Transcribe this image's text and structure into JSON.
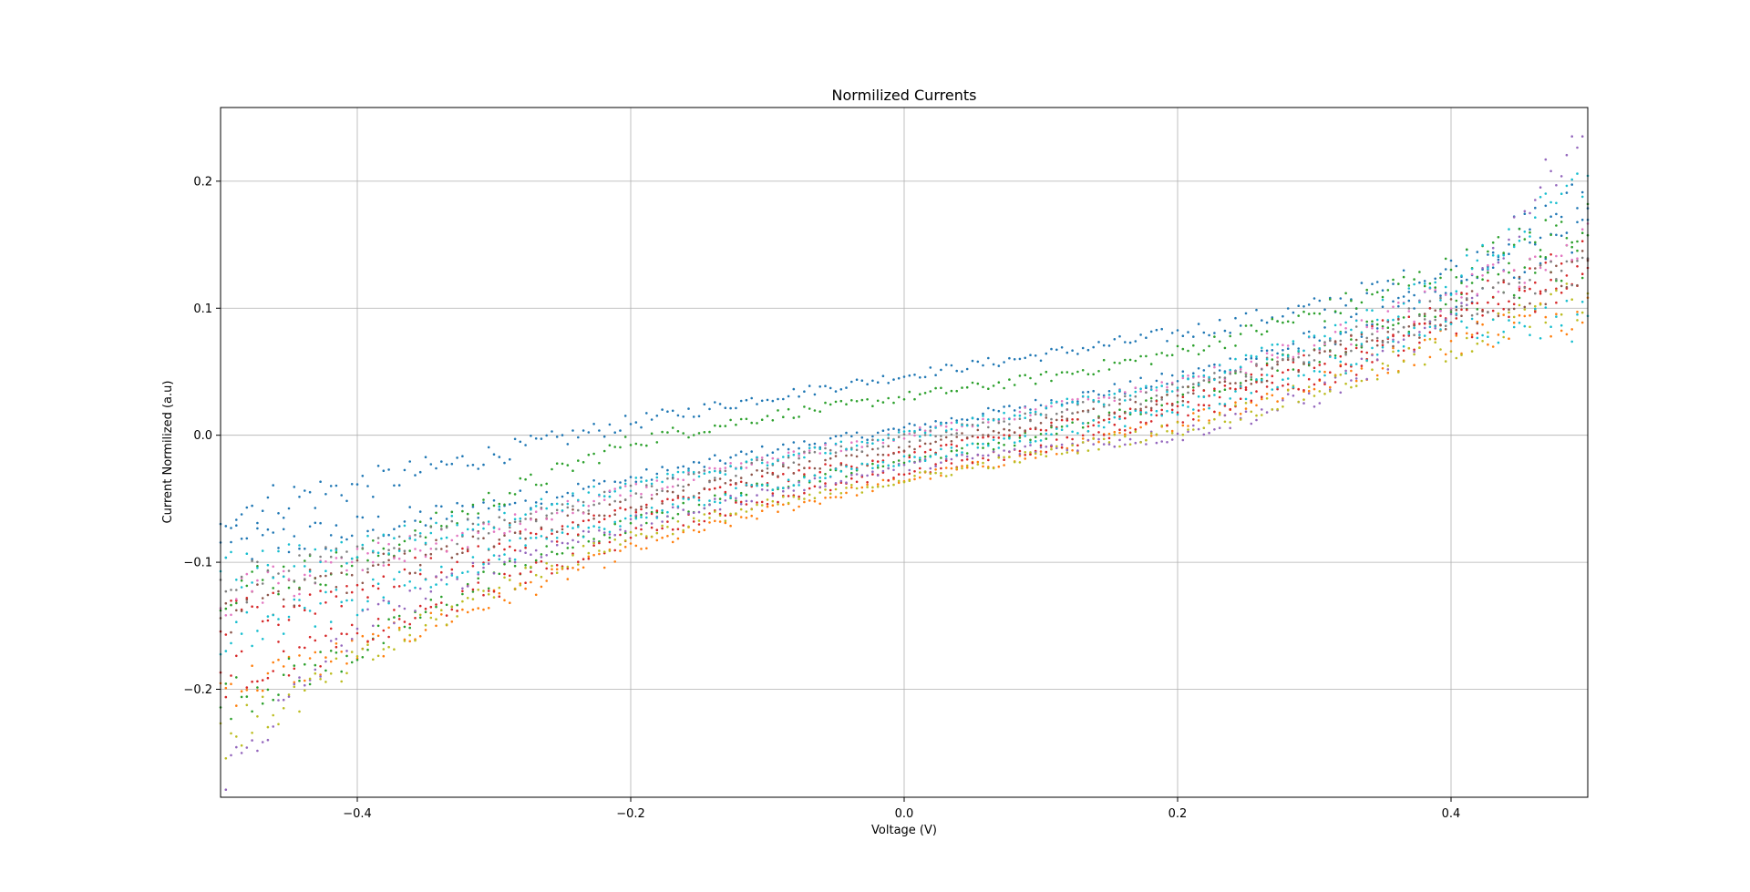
{
  "figure": {
    "background": "#ffffff"
  },
  "chart_data": {
    "type": "scatter",
    "title": "Normilized Currents",
    "xlabel": "Voltage (V)",
    "ylabel": "Current Normilized (a.u)",
    "xlim": [
      -0.5,
      0.5
    ],
    "ylim": [
      -0.285,
      0.258
    ],
    "xticks": [
      -0.4,
      -0.2,
      0.0,
      0.2,
      0.4
    ],
    "xtick_labels": [
      "−0.4",
      "−0.2",
      "0.0",
      "0.2",
      "0.4"
    ],
    "yticks": [
      -0.2,
      -0.1,
      0.0,
      0.1,
      0.2
    ],
    "ytick_labels": [
      "−0.2",
      "−0.1",
      "0.0",
      "0.1",
      "0.2"
    ],
    "grid": true,
    "legend": "none",
    "marker_size_hint": "small dots",
    "palette": [
      "#1f77b4",
      "#ff7f0e",
      "#2ca02c",
      "#d62728",
      "#9467bd",
      "#8c564b",
      "#e377c2",
      "#7f7f7f",
      "#bcbd22",
      "#17becf"
    ],
    "x": [
      -0.5,
      -0.4,
      -0.3,
      -0.2,
      -0.1,
      0.0,
      0.1,
      0.2,
      0.3,
      0.4,
      0.5
    ],
    "series": [
      {
        "color": "#1f77b4",
        "values": [
          -0.09,
          -0.075,
          -0.055,
          -0.035,
          -0.012,
          0.005,
          0.025,
          0.045,
          0.075,
          0.11,
          0.16
        ]
      },
      {
        "color": "#1f77b4",
        "values": [
          -0.06,
          -0.04,
          -0.015,
          0.01,
          0.03,
          0.047,
          0.063,
          0.08,
          0.1,
          0.13,
          0.19
        ]
      },
      {
        "color": "#ff7f0e",
        "values": [
          -0.2,
          -0.17,
          -0.13,
          -0.09,
          -0.06,
          -0.035,
          -0.015,
          0.01,
          0.04,
          0.075,
          0.1
        ]
      },
      {
        "color": "#2ca02c",
        "values": [
          -0.12,
          -0.1,
          -0.05,
          -0.005,
          0.015,
          0.03,
          0.045,
          0.065,
          0.095,
          0.13,
          0.17
        ]
      },
      {
        "color": "#2ca02c",
        "values": [
          -0.21,
          -0.17,
          -0.11,
          -0.07,
          -0.04,
          -0.02,
          0.0,
          0.03,
          0.065,
          0.105,
          0.14
        ]
      },
      {
        "color": "#d62728",
        "values": [
          -0.15,
          -0.12,
          -0.09,
          -0.06,
          -0.035,
          -0.015,
          0.005,
          0.025,
          0.06,
          0.1,
          0.14
        ]
      },
      {
        "color": "#d62728",
        "values": [
          -0.19,
          -0.16,
          -0.12,
          -0.08,
          -0.05,
          -0.03,
          -0.01,
          0.015,
          0.045,
          0.085,
          0.12
        ]
      },
      {
        "color": "#9467bd",
        "values": [
          -0.27,
          -0.15,
          -0.1,
          -0.07,
          -0.045,
          -0.025,
          -0.01,
          0.0,
          0.03,
          0.09,
          0.25
        ]
      },
      {
        "color": "#8c564b",
        "values": [
          -0.14,
          -0.11,
          -0.08,
          -0.055,
          -0.03,
          -0.01,
          0.01,
          0.03,
          0.06,
          0.095,
          0.13
        ]
      },
      {
        "color": "#e377c2",
        "values": [
          -0.13,
          -0.1,
          -0.075,
          -0.045,
          -0.02,
          0.0,
          0.02,
          0.04,
          0.07,
          0.11,
          0.15
        ]
      },
      {
        "color": "#7f7f7f",
        "values": [
          -0.12,
          -0.095,
          -0.07,
          -0.045,
          -0.022,
          -0.003,
          0.015,
          0.035,
          0.065,
          0.1,
          0.14
        ]
      },
      {
        "color": "#bcbd22",
        "values": [
          -0.24,
          -0.18,
          -0.12,
          -0.08,
          -0.055,
          -0.035,
          -0.015,
          0.005,
          0.035,
          0.07,
          0.11
        ]
      },
      {
        "color": "#17becf",
        "values": [
          -0.11,
          -0.09,
          -0.065,
          -0.04,
          -0.02,
          0.0,
          0.02,
          0.04,
          0.075,
          0.12,
          0.2
        ]
      },
      {
        "color": "#17becf",
        "values": [
          -0.16,
          -0.13,
          -0.095,
          -0.065,
          -0.04,
          -0.02,
          0.0,
          0.02,
          0.05,
          0.085,
          0.09
        ]
      }
    ]
  }
}
